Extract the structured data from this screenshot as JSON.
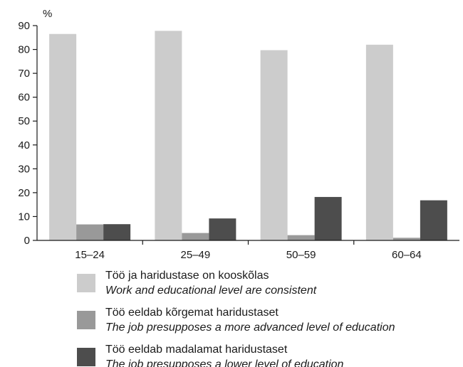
{
  "chart_data": {
    "type": "bar",
    "unit_label": "%",
    "categories": [
      "15–24",
      "25–49",
      "50–59",
      "60–64"
    ],
    "ylim": [
      0,
      90
    ],
    "yticks": [
      0,
      10,
      20,
      30,
      40,
      50,
      60,
      70,
      80,
      90
    ],
    "grid": false,
    "legend_position": "bottom",
    "series": [
      {
        "name": "Töö ja haridustase on kooskõlas",
        "name_en": "Work and educational level are consistent",
        "color": "#cccccc",
        "values": [
          86.5,
          87.8,
          79.7,
          82.0
        ]
      },
      {
        "name": "Töö eeldab kõrgemat haridustaset",
        "name_en": "The job presupposes a more advanced level of education",
        "color": "#999999",
        "values": [
          6.7,
          3.1,
          2.2,
          1.1
        ]
      },
      {
        "name": "Töö eeldab madalamat haridustaset",
        "name_en": "The job presupposes a lower level of education",
        "color": "#4d4d4d",
        "values": [
          6.8,
          9.2,
          18.2,
          16.8
        ]
      }
    ]
  }
}
